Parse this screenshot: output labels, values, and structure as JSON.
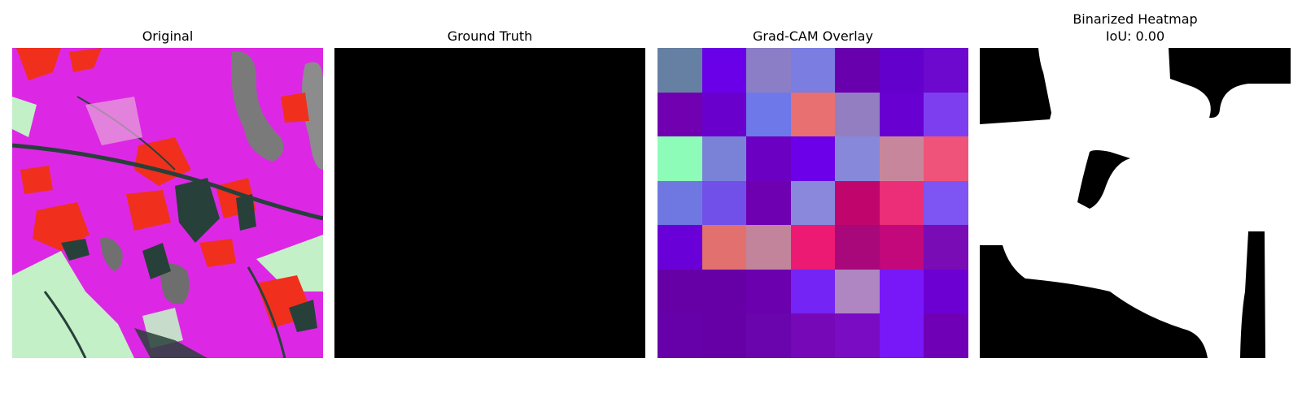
{
  "panels": {
    "original": {
      "title": "Original"
    },
    "ground_truth": {
      "title": "Ground Truth"
    },
    "gradcam": {
      "title": "Grad-CAM Overlay",
      "grid": [
        [
          "#6680a4",
          "#6a00e8",
          "#8c7ec6",
          "#7b7de1",
          "#6800ad",
          "#6400cb",
          "#6d08cf"
        ],
        [
          "#7000b0",
          "#6a00cc",
          "#6e78e8",
          "#e87070",
          "#947ec2",
          "#6800d2",
          "#7d3ef0"
        ],
        [
          "#8cfcb8",
          "#7a82d8",
          "#6c00c2",
          "#6b00e9",
          "#8888da",
          "#c8869c",
          "#ef5379"
        ],
        [
          "#6e78e0",
          "#7050e8",
          "#6e00b2",
          "#8a88dc",
          "#c0066c",
          "#ec2e78",
          "#7e54f2"
        ],
        [
          "#6a00d8",
          "#e2706e",
          "#c2849a",
          "#ec1a72",
          "#a8087a",
          "#c2087a",
          "#7a0cb6"
        ],
        [
          "#6600a6",
          "#6600a6",
          "#6a00ae",
          "#7424f4",
          "#b086c2",
          "#7818f8",
          "#6c00d2"
        ],
        [
          "#6600a8",
          "#6600a6",
          "#6a04ac",
          "#7608b8",
          "#7a0cc4",
          "#7818f8",
          "#7000b6"
        ]
      ]
    },
    "binarized": {
      "title_line1": "Binarized Heatmap",
      "title_line2": "IoU: 0.00"
    }
  },
  "colors": {
    "magenta": "#dc28e4",
    "red": "#f0301c",
    "dark_green": "#28403a",
    "pale_green": "#c4f0c8"
  }
}
